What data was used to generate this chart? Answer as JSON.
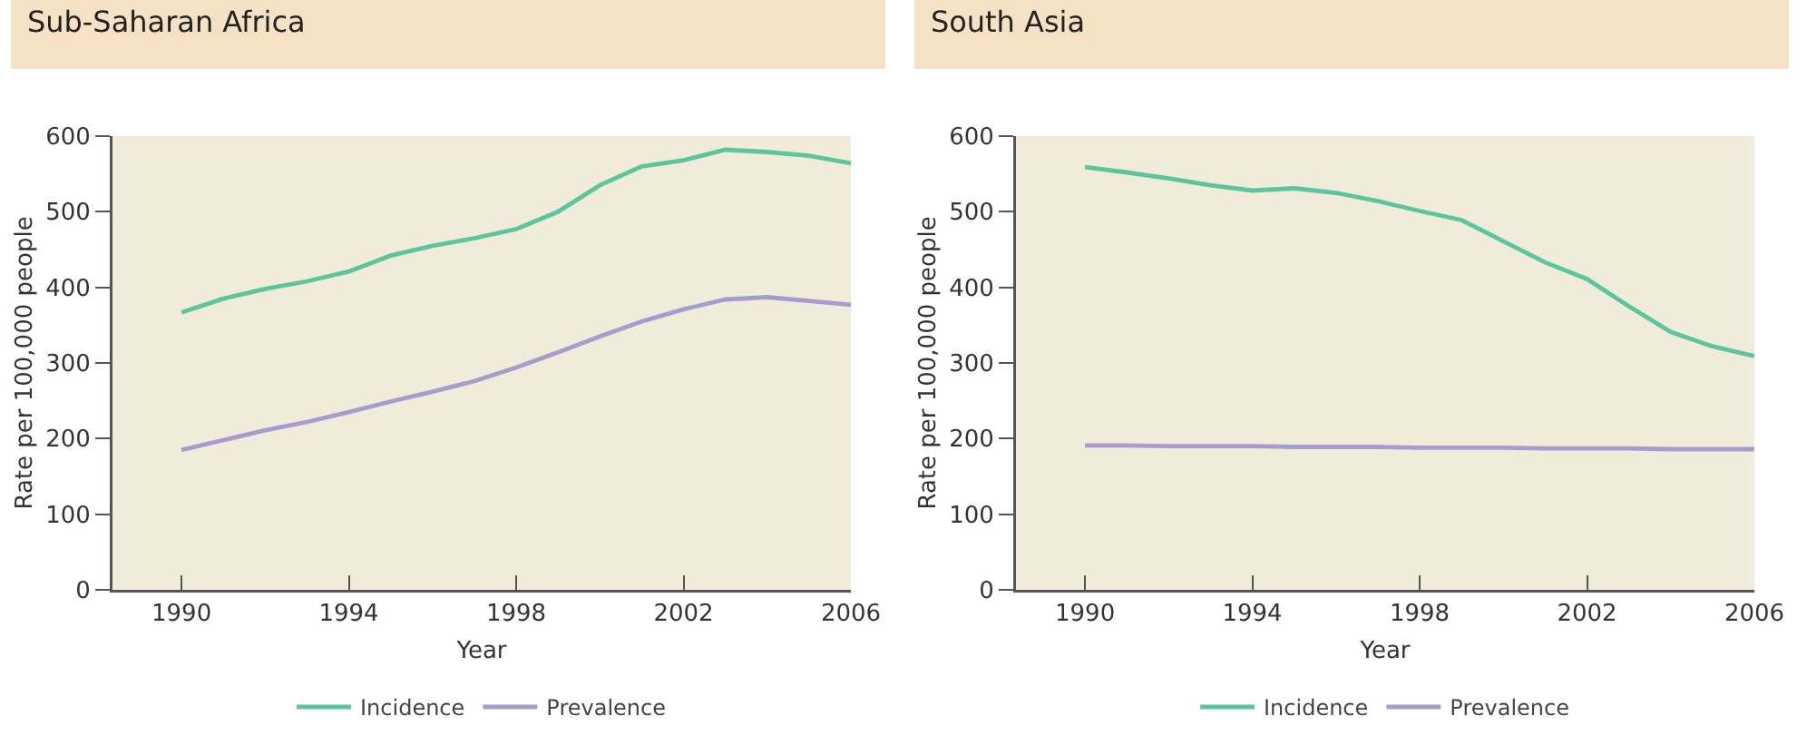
{
  "chart_data": [
    {
      "type": "line",
      "title": "Sub-Saharan Africa",
      "xlabel": "Year",
      "ylabel": "Rate per 100,000 people",
      "x": [
        1990,
        1991,
        1992,
        1993,
        1994,
        1995,
        1996,
        1997,
        1998,
        1999,
        2000,
        2001,
        2002,
        2003,
        2004,
        2005,
        2006
      ],
      "series": [
        {
          "name": "Incidence",
          "color": "#5cc59e",
          "values": [
            367,
            385,
            398,
            408,
            421,
            442,
            455,
            465,
            477,
            500,
            535,
            560,
            568,
            582,
            579,
            574,
            564
          ]
        },
        {
          "name": "Prevalence",
          "color": "#a49ecf",
          "values": [
            185,
            198,
            211,
            222,
            235,
            249,
            262,
            276,
            294,
            314,
            335,
            355,
            371,
            384,
            387,
            382,
            377
          ]
        }
      ],
      "xlim": [
        1988.35,
        2006
      ],
      "xticks": [
        1990,
        1994,
        1998,
        2002,
        2006
      ],
      "ylim": [
        0,
        600
      ],
      "yticks": [
        0,
        100,
        200,
        300,
        400,
        500,
        600
      ],
      "grid": false,
      "legend": "bottom",
      "marker": "none",
      "line_style": "solid"
    },
    {
      "type": "line",
      "title": "South Asia",
      "xlabel": "Year",
      "ylabel": "Rate per 100,000 people",
      "x": [
        1990,
        1991,
        1992,
        1993,
        1994,
        1995,
        1996,
        1997,
        1998,
        1999,
        2000,
        2001,
        2002,
        2003,
        2004,
        2005,
        2006
      ],
      "series": [
        {
          "name": "Incidence",
          "color": "#5cc59e",
          "values": [
            559,
            552,
            544,
            535,
            528,
            531,
            525,
            514,
            501,
            489,
            461,
            433,
            411,
            375,
            341,
            322,
            309
          ]
        },
        {
          "name": "Prevalence",
          "color": "#a49ecf",
          "values": [
            191,
            191,
            190,
            190,
            190,
            189,
            189,
            189,
            188,
            188,
            188,
            187,
            187,
            187,
            186,
            186,
            186
          ]
        }
      ],
      "xlim": [
        1988.35,
        2006
      ],
      "xticks": [
        1990,
        1994,
        1998,
        2002,
        2006
      ],
      "ylim": [
        0,
        600
      ],
      "yticks": [
        0,
        100,
        200,
        300,
        400,
        500,
        600
      ],
      "grid": false,
      "legend": "bottom",
      "marker": "none",
      "line_style": "solid"
    }
  ]
}
